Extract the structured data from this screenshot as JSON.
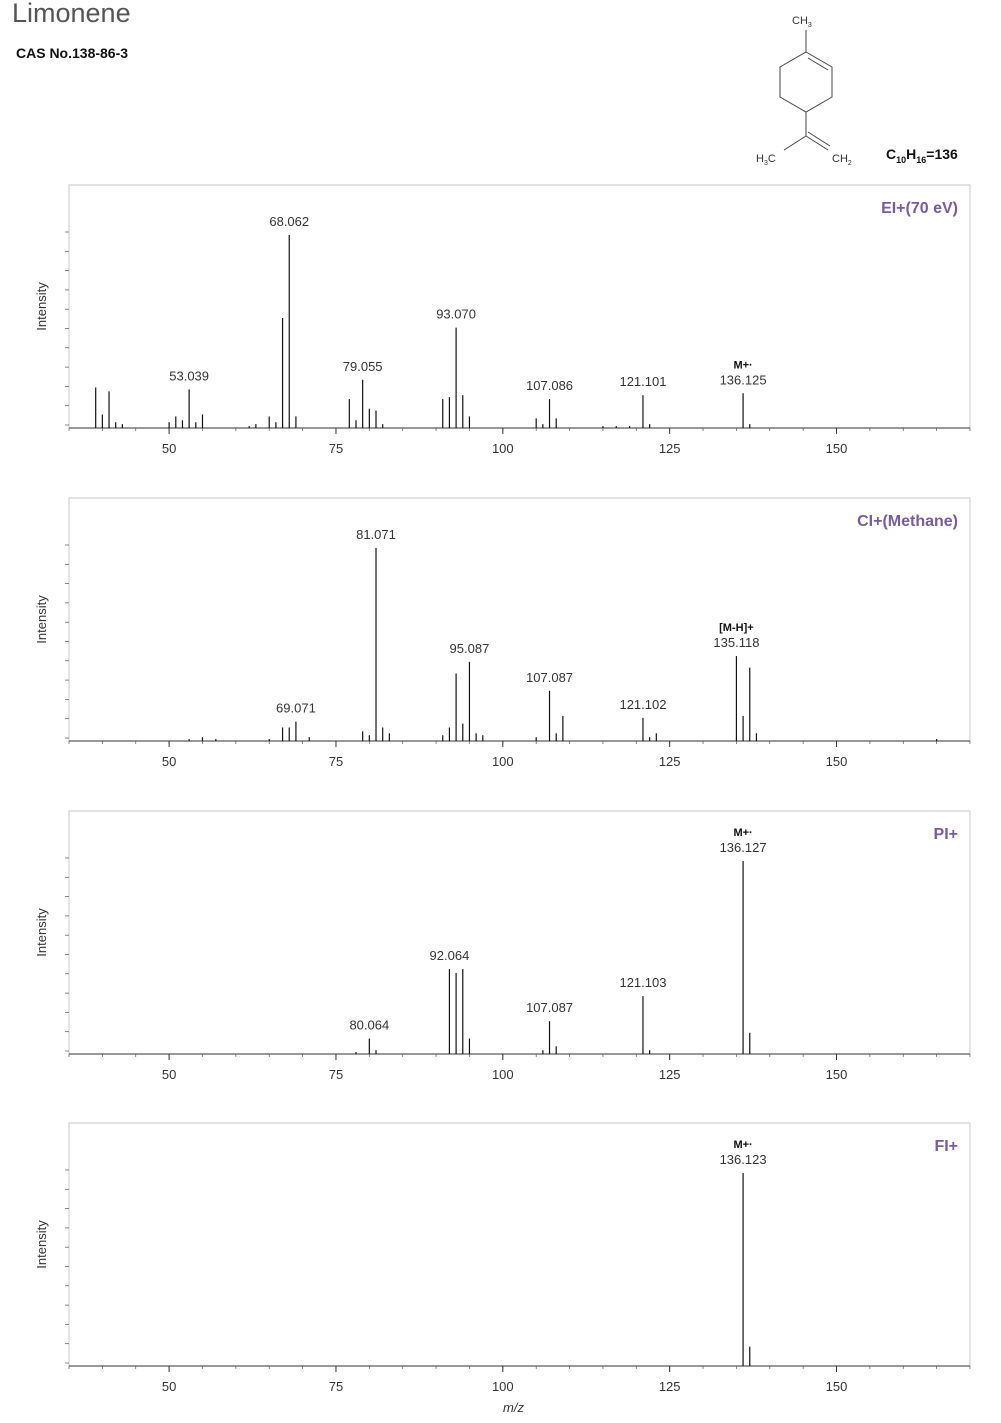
{
  "compound": {
    "name": "Limonene",
    "cas": "CAS No.138-86-3",
    "formula": {
      "c": "C",
      "c_sub": "10",
      "h": "H",
      "h_sub": "16",
      "mass": "=136"
    },
    "structure_labels": {
      "ch3_top": "CH",
      "ch3_top_sub": "3",
      "h3c": "H",
      "h3c_sub": "3",
      "h3c_c": "C",
      "ch2": "CH",
      "ch2_sub": "2"
    }
  },
  "x_axis_label": "m/z",
  "colors": {
    "ionization_label": "#7a5aa0",
    "axis": "#333333",
    "frame": "#c8c8c8"
  },
  "chart_data": [
    {
      "type": "bar",
      "method": "EI+(70 eV)",
      "ylabel": "Intensity",
      "xlim": [
        35,
        170
      ],
      "xticks": [
        50,
        75,
        100,
        125,
        150
      ],
      "ylim": [
        0,
        100
      ],
      "peaks": [
        [
          39,
          21
        ],
        [
          40,
          7
        ],
        [
          41,
          19
        ],
        [
          42,
          3
        ],
        [
          43,
          2
        ],
        [
          50,
          3
        ],
        [
          51,
          6
        ],
        [
          52,
          4
        ],
        [
          53,
          20
        ],
        [
          54,
          3
        ],
        [
          55,
          7
        ],
        [
          62,
          1
        ],
        [
          63,
          2
        ],
        [
          65,
          6
        ],
        [
          66,
          3
        ],
        [
          67,
          57
        ],
        [
          68,
          100
        ],
        [
          69,
          6
        ],
        [
          77,
          15
        ],
        [
          78,
          4
        ],
        [
          79,
          25
        ],
        [
          80,
          10
        ],
        [
          81,
          9
        ],
        [
          82,
          2
        ],
        [
          91,
          15
        ],
        [
          92,
          16
        ],
        [
          93,
          52
        ],
        [
          94,
          17
        ],
        [
          95,
          6
        ],
        [
          105,
          5
        ],
        [
          106,
          2
        ],
        [
          107,
          15
        ],
        [
          108,
          5
        ],
        [
          115,
          1
        ],
        [
          117,
          1
        ],
        [
          119,
          1
        ],
        [
          121,
          17
        ],
        [
          122,
          2
        ],
        [
          136,
          18
        ],
        [
          137,
          2
        ]
      ],
      "labels": [
        {
          "mz": 53,
          "text": "53.039"
        },
        {
          "mz": 68,
          "text": "68.062"
        },
        {
          "mz": 79,
          "text": "79.055"
        },
        {
          "mz": 93,
          "text": "93.070"
        },
        {
          "mz": 107,
          "text": "107.086"
        },
        {
          "mz": 121,
          "text": "121.101"
        },
        {
          "mz": 136,
          "text": "136.125",
          "ion": "M+·"
        }
      ]
    },
    {
      "type": "bar",
      "method": "CI+(Methane)",
      "ylabel": "Intensity",
      "xlim": [
        35,
        170
      ],
      "xticks": [
        50,
        75,
        100,
        125,
        150
      ],
      "ylim": [
        0,
        100
      ],
      "peaks": [
        [
          53,
          1
        ],
        [
          55,
          2
        ],
        [
          57,
          1
        ],
        [
          65,
          1
        ],
        [
          67,
          7
        ],
        [
          68,
          7
        ],
        [
          69,
          10
        ],
        [
          71,
          2
        ],
        [
          79,
          5
        ],
        [
          80,
          3
        ],
        [
          81,
          100
        ],
        [
          82,
          7
        ],
        [
          83,
          4
        ],
        [
          91,
          3
        ],
        [
          92,
          7
        ],
        [
          93,
          35
        ],
        [
          94,
          9
        ],
        [
          95,
          41
        ],
        [
          96,
          4
        ],
        [
          97,
          3
        ],
        [
          105,
          2
        ],
        [
          107,
          26
        ],
        [
          108,
          4
        ],
        [
          109,
          13
        ],
        [
          121,
          12
        ],
        [
          122,
          2
        ],
        [
          123,
          4
        ],
        [
          135,
          44
        ],
        [
          136,
          13
        ],
        [
          137,
          38
        ],
        [
          138,
          4
        ],
        [
          165,
          1
        ]
      ],
      "labels": [
        {
          "mz": 69,
          "text": "69.071"
        },
        {
          "mz": 81,
          "text": "81.071"
        },
        {
          "mz": 95,
          "text": "95.087"
        },
        {
          "mz": 107,
          "text": "107.087"
        },
        {
          "mz": 121,
          "text": "121.102"
        },
        {
          "mz": 135,
          "text": "135.118",
          "ion": "[M-H]+"
        }
      ]
    },
    {
      "type": "bar",
      "method": "PI+",
      "ylabel": "Intensity",
      "xlim": [
        35,
        170
      ],
      "xticks": [
        50,
        75,
        100,
        125,
        150
      ],
      "ylim": [
        0,
        100
      ],
      "peaks": [
        [
          78,
          1
        ],
        [
          80,
          8
        ],
        [
          81,
          2
        ],
        [
          92,
          44
        ],
        [
          93,
          42
        ],
        [
          94,
          44
        ],
        [
          95,
          8
        ],
        [
          106,
          2
        ],
        [
          107,
          17
        ],
        [
          108,
          4
        ],
        [
          121,
          30
        ],
        [
          122,
          2
        ],
        [
          136,
          100
        ],
        [
          137,
          11
        ]
      ],
      "labels": [
        {
          "mz": 80,
          "text": "80.064"
        },
        {
          "mz": 92,
          "text": "92.064"
        },
        {
          "mz": 107,
          "text": "107.087"
        },
        {
          "mz": 121,
          "text": "121.103"
        },
        {
          "mz": 136,
          "text": "136.127",
          "ion": "M+·"
        }
      ]
    },
    {
      "type": "bar",
      "method": "FI+",
      "ylabel": "Intensity",
      "xlim": [
        35,
        170
      ],
      "xticks": [
        50,
        75,
        100,
        125,
        150
      ],
      "ylim": [
        0,
        100
      ],
      "peaks": [
        [
          136,
          100
        ],
        [
          137,
          10
        ]
      ],
      "labels": [
        {
          "mz": 136,
          "text": "136.123",
          "ion": "M+·"
        }
      ]
    }
  ]
}
